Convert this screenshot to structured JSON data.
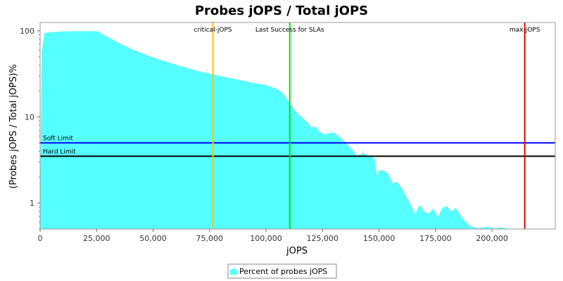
{
  "chart_data": {
    "type": "area",
    "title": "Probes jOPS / Total jOPS",
    "xlabel": "jOPS",
    "ylabel": "(Probes jOPS / Total jOPS)%",
    "y_scale": "log",
    "xlim": [
      0,
      228000
    ],
    "ylim": [
      0.5,
      125
    ],
    "x_ticks": [
      0,
      25000,
      50000,
      75000,
      100000,
      125000,
      150000,
      175000,
      200000
    ],
    "x_tick_labels": [
      "0",
      "25,000",
      "50,000",
      "75,000",
      "100,000",
      "125,000",
      "150,000",
      "175,000",
      "200,000"
    ],
    "y_ticks": [
      1,
      10,
      100
    ],
    "y_tick_labels": [
      "1",
      "10",
      "100"
    ],
    "grid": false,
    "legend_position": "bottom-center",
    "series": [
      {
        "name": "Percent of probes jOPS",
        "color": "#55FFFF",
        "x": [
          0,
          700,
          2000,
          8000,
          15000,
          20000,
          25500,
          28000,
          32000,
          36000,
          40000,
          45000,
          50000,
          55000,
          60000,
          65000,
          70000,
          76000,
          82000,
          88000,
          94000,
          100000,
          104000,
          107000,
          110000,
          112000,
          114000,
          116000,
          118000,
          120000,
          122000,
          124000,
          126000,
          128000,
          130000,
          132000,
          134000,
          136000,
          138000,
          140000,
          141000,
          143000,
          145000,
          147000,
          148000,
          149000,
          150000,
          152000,
          154000,
          156000,
          158000,
          160000,
          162000,
          164000,
          166000,
          168000,
          170000,
          172000,
          174000,
          176000,
          178000,
          180000,
          182000,
          184000,
          186000,
          188000,
          190000,
          192000,
          194000,
          196000,
          198000,
          200000,
          202000,
          204000,
          206000,
          208000,
          210000,
          214000
        ],
        "values": [
          1.0,
          58,
          95,
          98,
          99,
          99,
          99,
          90,
          79,
          70,
          62,
          55,
          49,
          44.5,
          40.5,
          37,
          34,
          31.5,
          29,
          27,
          25,
          23.5,
          21.5,
          19.5,
          15,
          12.5,
          11,
          9.8,
          8.8,
          7.6,
          7.7,
          6.6,
          6.3,
          6.5,
          6.6,
          6.0,
          5.4,
          4.8,
          4.2,
          3.6,
          3.6,
          3.8,
          3.6,
          3.4,
          3.3,
          2.1,
          2.4,
          2.4,
          2.2,
          1.7,
          1.75,
          1.5,
          1.2,
          0.95,
          0.75,
          0.95,
          0.8,
          0.75,
          0.87,
          0.68,
          0.88,
          0.92,
          0.8,
          0.88,
          0.72,
          0.62,
          0.55,
          0.52,
          0.51,
          0.52,
          0.53,
          0.51,
          0.51,
          0.52,
          0.51,
          0.5,
          0.5,
          0.5
        ]
      }
    ],
    "vertical_markers": [
      {
        "label": "critical-jOPS",
        "x": 76500,
        "color": "#FFC000"
      },
      {
        "label": "Last Success for SLAs",
        "x": 110500,
        "color": "#00E000"
      },
      {
        "label": "max-jOPS",
        "x": 214500,
        "color": "#E00000"
      }
    ],
    "horizontal_markers": [
      {
        "label": "Soft Limit",
        "y": 5,
        "color": "#0000FF"
      },
      {
        "label": "Hard Limit",
        "y": 3.5,
        "color": "#000000"
      }
    ]
  }
}
